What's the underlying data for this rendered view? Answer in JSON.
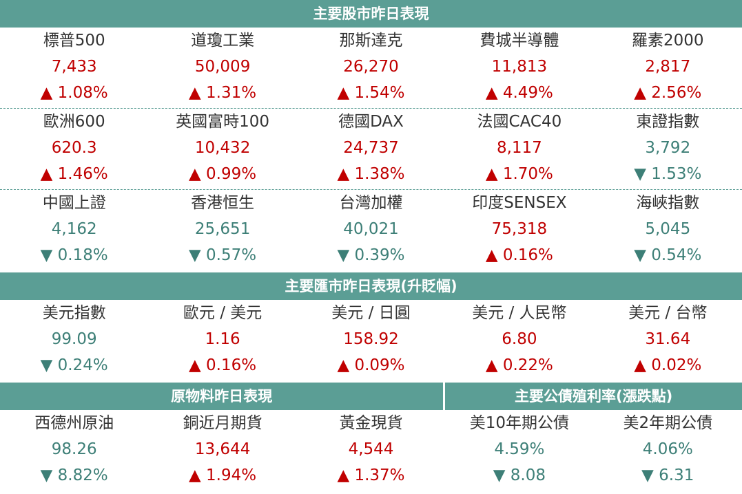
{
  "sections": [
    {
      "title": "主要股市昨日表現",
      "rows": [
        [
          {
            "name": "標普500",
            "value": "7,433",
            "change": "▲ 1.08%"
          },
          {
            "name": "道瓊工業",
            "value": "50,009",
            "change": "▲ 1.31%"
          },
          {
            "name": "那斯達克",
            "value": "26,270",
            "change": "▲ 1.54%"
          },
          {
            "name": "費城半導體",
            "value": "11,813",
            "change": "▲ 4.49%"
          },
          {
            "name": "羅素2000",
            "value": "2,817",
            "change": "▲ 2.56%"
          }
        ],
        [
          {
            "name": "歐洲600",
            "value": "620.3",
            "change": "▲ 1.46%"
          },
          {
            "name": "英國富時100",
            "value": "10,432",
            "change": "▲ 0.99%"
          },
          {
            "name": "德國DAX",
            "value": "24,737",
            "change": "▲ 1.38%"
          },
          {
            "name": "法國CAC40",
            "value": "8,117",
            "change": "▲ 1.70%"
          },
          {
            "name": "東證指數",
            "value": "3,792",
            "change": "▼ 1.53%"
          }
        ],
        [
          {
            "name": "中國上證",
            "value": "4,162",
            "change": "▼ 0.18%"
          },
          {
            "name": "香港恒生",
            "value": "25,651",
            "change": "▼ 0.57%"
          },
          {
            "name": "台灣加權",
            "value": "40,021",
            "change": "▼ 0.39%"
          },
          {
            "name": "印度SENSEX",
            "value": "75,318",
            "change": "▲ 0.16%"
          },
          {
            "name": "海峽指數",
            "value": "5,045",
            "change": "▼ 0.54%"
          }
        ]
      ]
    },
    {
      "title": "主要匯市昨日表現(升貶幅)",
      "rows": [
        [
          {
            "name": "美元指數",
            "value": "99.09",
            "change": "▼ 0.24%"
          },
          {
            "name": "歐元 / 美元",
            "value": "1.16",
            "change": "▲ 0.16%"
          },
          {
            "name": "美元 / 日圓",
            "value": "158.92",
            "change": "▲ 0.09%"
          },
          {
            "name": "美元 / 人民幣",
            "value": "6.80",
            "change": "▲ 0.22%"
          },
          {
            "name": "美元 / 台幣",
            "value": "31.64",
            "change": "▲ 0.02%"
          }
        ]
      ]
    }
  ],
  "bottom": [
    {
      "title": "原物料昨日表現",
      "items": [
        {
          "name": "西德州原油",
          "value": "98.26",
          "change": "▼ 8.82%"
        },
        {
          "name": "銅近月期貨",
          "value": "13,644",
          "change": "▲ 1.94%"
        },
        {
          "name": "黃金現貨",
          "value": "4,544",
          "change": "▲ 1.37%"
        }
      ]
    },
    {
      "title": "主要公債殖利率(漲跌點)",
      "items": [
        {
          "name": "美10年期公債",
          "value": "4.59%",
          "change": "▼ 8.08"
        },
        {
          "name": "美2年期公債",
          "value": "4.06%",
          "change": "▼ 6.31"
        }
      ]
    }
  ]
}
